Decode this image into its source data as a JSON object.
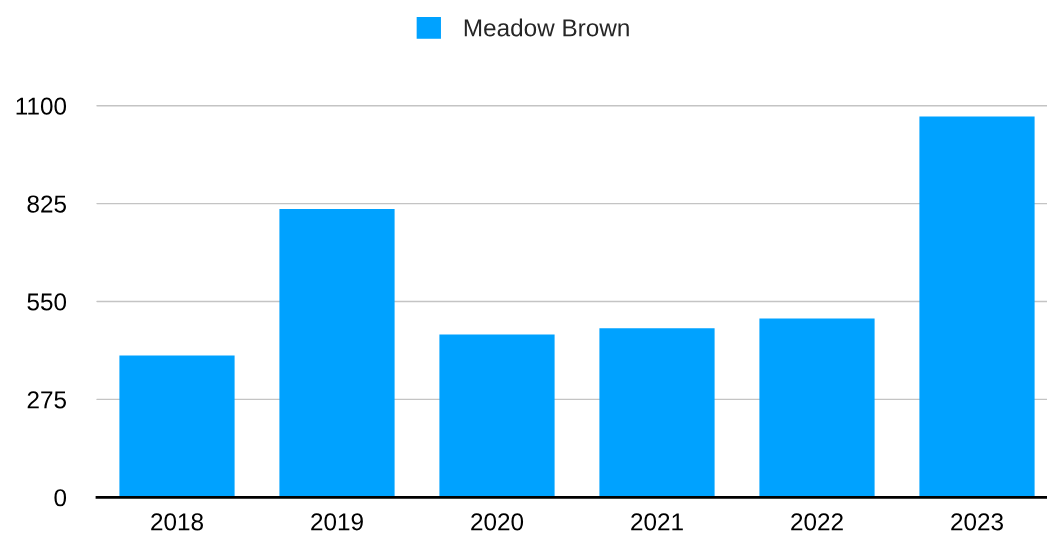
{
  "chart_data": {
    "type": "bar",
    "categories": [
      "2018",
      "2019",
      "2020",
      "2021",
      "2022",
      "2023"
    ],
    "series": [
      {
        "name": "Meadow Brown",
        "color": "#00a2ff",
        "values": [
          398,
          810,
          457,
          475,
          502,
          1070
        ]
      }
    ],
    "ylim": [
      0,
      1100
    ],
    "yticks": [
      0,
      275,
      550,
      825,
      1100
    ],
    "grid": "y",
    "legend": "top"
  }
}
